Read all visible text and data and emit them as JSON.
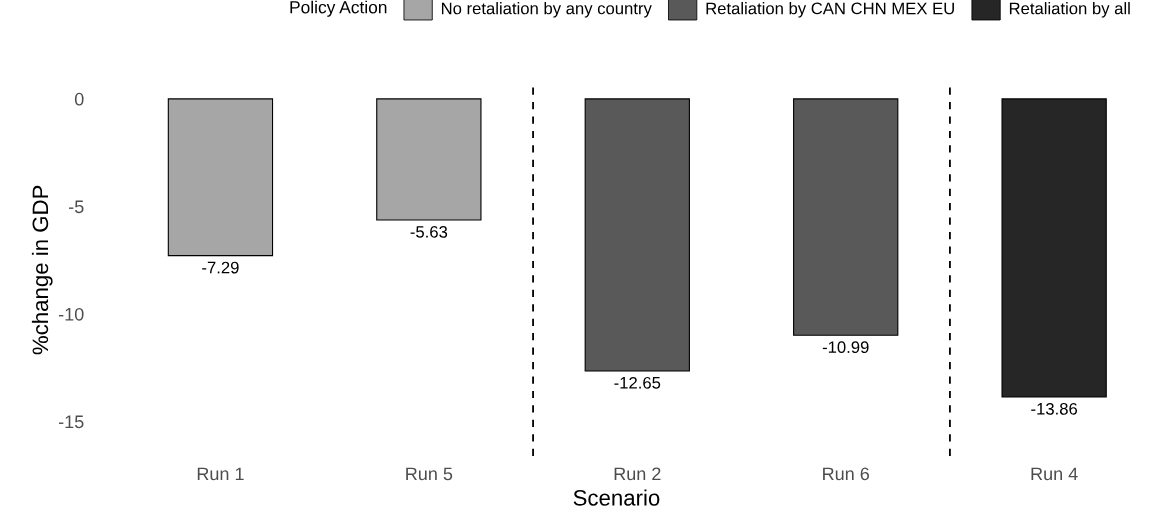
{
  "chart_data": {
    "type": "bar",
    "xlabel": "Scenario",
    "ylabel": "%change in GDP",
    "legend_title": "Policy Action",
    "categories": [
      "Run 1",
      "Run 5",
      "Run 2",
      "Run 6",
      "Run 4"
    ],
    "series": [
      {
        "name": "No retaliation by any country",
        "color": "#a6a6a6",
        "values": [
          -7.29,
          -5.63,
          null,
          null,
          null
        ]
      },
      {
        "name": "Retaliation by CAN CHN MEX EU",
        "color": "#595959",
        "values": [
          null,
          null,
          -12.65,
          -10.99,
          null
        ]
      },
      {
        "name": "Retaliation by all",
        "color": "#262626",
        "values": [
          null,
          null,
          null,
          null,
          -13.86
        ]
      }
    ],
    "ylim": [
      -16.6,
      0.7
    ],
    "yticks": [
      {
        "value": 0,
        "label": "0"
      },
      {
        "value": -5,
        "label": "-5"
      },
      {
        "value": -10,
        "label": "-10"
      },
      {
        "value": -15,
        "label": "-15"
      }
    ],
    "data_labels": true,
    "grid": false,
    "legend": "top"
  }
}
